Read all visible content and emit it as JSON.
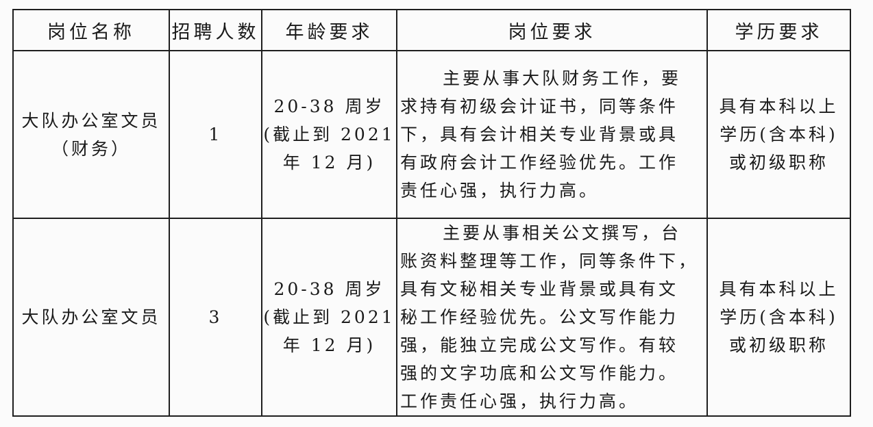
{
  "table": {
    "headers": [
      "岗位名称",
      "招聘人数",
      "年龄要求",
      "岗位要求",
      "学历要求"
    ],
    "rows": [
      {
        "position": [
          "大队办公室文员",
          "（财务）"
        ],
        "count": "1",
        "age": [
          "20-38 周岁",
          "(截止到 2021",
          "年 12 月)"
        ],
        "requirement": [
          "主要从事大队财务工作，要",
          "求持有初级会计证书，同等条件",
          "下，具有会计相关专业背景或具",
          "有政府会计工作经验优先。工作",
          "责任心强，执行力高。"
        ],
        "education": [
          "具有本科以上",
          "学历(含本科)",
          "或初级职称"
        ]
      },
      {
        "position": [
          "大队办公室文员"
        ],
        "count": "3",
        "age": [
          "20-38 周岁",
          "(截止到 2021",
          "年 12 月)"
        ],
        "requirement": [
          "主要从事相关公文撰写，台",
          "账资料整理等工作，同等条件下，",
          "具有文秘相关专业背景或具有文",
          "秘工作经验优先。公文写作能力",
          "强，能独立完成公文写作。有较",
          "强的文字功底和公文写作能力。",
          "工作责任心强，执行力高。"
        ],
        "education": [
          "具有本科以上",
          "学历(含本科)",
          "或初级职称"
        ]
      }
    ]
  }
}
